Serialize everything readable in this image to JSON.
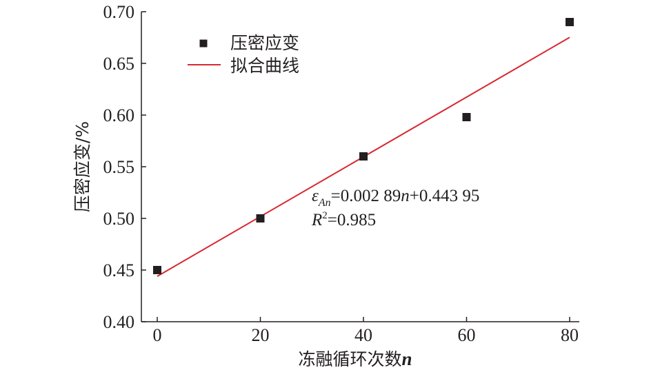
{
  "chart_data": {
    "type": "scatter",
    "title": "",
    "xlabel": "冻融循环次数",
    "xlabel_var": "n",
    "ylabel": "压密应变/%",
    "xlim": [
      0,
      80
    ],
    "ylim": [
      0.4,
      0.7
    ],
    "x_ticks": [
      0,
      20,
      40,
      60,
      80
    ],
    "x_tick_labels": [
      "0",
      "20",
      "40",
      "60",
      "80"
    ],
    "y_ticks": [
      0.4,
      0.45,
      0.5,
      0.55,
      0.6,
      0.65,
      0.7
    ],
    "y_tick_labels": [
      "0.40",
      "0.45",
      "0.50",
      "0.55",
      "0.60",
      "0.65",
      "0.70"
    ],
    "grid": false,
    "legend_position": "top-left",
    "series": [
      {
        "name": "压密应变",
        "kind": "scatter",
        "marker": "square",
        "color": "#231f20",
        "x": [
          0,
          20,
          40,
          60,
          80
        ],
        "y": [
          0.45,
          0.5,
          0.56,
          0.598,
          0.69
        ]
      },
      {
        "name": "拟合曲线",
        "kind": "line",
        "color": "#d7282f",
        "x": [
          0,
          80
        ],
        "y": [
          0.44395,
          0.67515
        ]
      }
    ],
    "annotation": {
      "eq_symbol": "ε",
      "eq_subscript": "An",
      "eq_part1": "=0.002 89",
      "eq_var": "n",
      "eq_part2": "+0.443 95",
      "r2_symbol": "R",
      "r2_sup": "2",
      "r2_value": "=0.985"
    }
  }
}
